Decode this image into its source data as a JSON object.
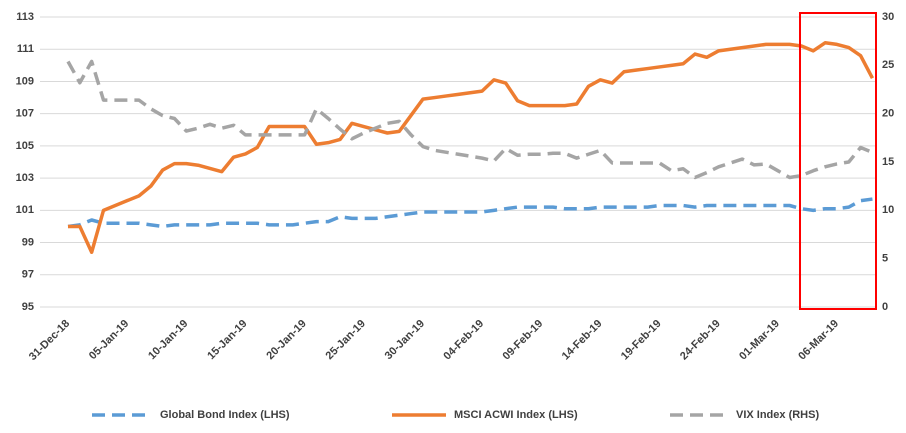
{
  "chart_data": {
    "type": "line",
    "categories": [
      "31-Dec-18",
      null,
      null,
      null,
      null,
      "05-Jan-19",
      null,
      null,
      null,
      null,
      "10-Jan-19",
      null,
      null,
      null,
      null,
      "15-Jan-19",
      null,
      null,
      null,
      null,
      "20-Jan-19",
      null,
      null,
      null,
      null,
      "25-Jan-19",
      null,
      null,
      null,
      null,
      "30-Jan-19",
      null,
      null,
      null,
      null,
      "04-Feb-19",
      null,
      null,
      null,
      null,
      "09-Feb-19",
      null,
      null,
      null,
      null,
      "14-Feb-19",
      null,
      null,
      null,
      null,
      "19-Feb-19",
      null,
      null,
      null,
      null,
      "24-Feb-19",
      null,
      null,
      null,
      null,
      "01-Mar-19",
      null,
      null,
      null,
      null,
      "06-Mar-19",
      null,
      null,
      null
    ],
    "series": [
      {
        "name": "Global Bond Index (LHS)",
        "color": "#5b9bd5",
        "dashed": true,
        "axis": "y",
        "values": [
          100,
          100.1,
          100.4,
          100.2,
          100.2,
          100.2,
          100.2,
          100.1,
          100,
          100.1,
          100.1,
          100.1,
          100.1,
          100.2,
          100.2,
          100.2,
          100.2,
          100.1,
          100.1,
          100.1,
          100.2,
          100.3,
          100.3,
          100.6,
          100.5,
          100.5,
          100.5,
          100.6,
          100.7,
          100.8,
          100.9,
          100.9,
          100.9,
          100.9,
          100.9,
          100.9,
          101,
          101.1,
          101.2,
          101.2,
          101.2,
          101.2,
          101.1,
          101.1,
          101.1,
          101.2,
          101.2,
          101.2,
          101.2,
          101.2,
          101.3,
          101.3,
          101.3,
          101.2,
          101.3,
          101.3,
          101.3,
          101.3,
          101.3,
          101.3,
          101.3,
          101.3,
          101.1,
          101,
          101.1,
          101.1,
          101.2,
          101.6,
          101.7
        ]
      },
      {
        "name": "MSCI ACWI Index (LHS)",
        "color": "#ed7d31",
        "dashed": false,
        "axis": "y",
        "values": [
          100,
          100,
          98.4,
          101,
          101.3,
          101.6,
          101.9,
          102.5,
          103.5,
          103.9,
          103.9,
          103.8,
          103.6,
          103.4,
          104.3,
          104.5,
          104.9,
          106.2,
          106.2,
          106.2,
          106.2,
          105.1,
          105.2,
          105.4,
          106.4,
          106.2,
          106,
          105.8,
          105.9,
          106.9,
          107.9,
          108,
          108.1,
          108.2,
          108.3,
          108.4,
          109.1,
          108.9,
          107.8,
          107.5,
          107.5,
          107.5,
          107.5,
          107.6,
          108.7,
          109.1,
          108.9,
          109.6,
          109.7,
          109.8,
          109.9,
          110,
          110.1,
          110.7,
          110.5,
          110.9,
          111,
          111.1,
          111.2,
          111.3,
          111.3,
          111.3,
          111.2,
          110.9,
          111.4,
          111.3,
          111.1,
          110.6,
          109.2
        ]
      },
      {
        "name": "VIX Index (RHS)",
        "color": "#a5a5a5",
        "dashed": true,
        "axis": "y2",
        "values": [
          25.4,
          23.2,
          25.4,
          21.4,
          21.4,
          21.4,
          21.4,
          20.5,
          19.8,
          19.5,
          18.2,
          18.5,
          18.9,
          18.5,
          18.8,
          17.8,
          17.8,
          17.8,
          17.8,
          17.8,
          17.8,
          20.5,
          19.5,
          18.4,
          17.4,
          18,
          18.5,
          19,
          19.2,
          17.8,
          16.6,
          16.2,
          16,
          15.8,
          15.6,
          15.4,
          15.1,
          16.4,
          15.7,
          15.8,
          15.8,
          15.9,
          15.9,
          15.4,
          15.8,
          16.2,
          14.9,
          14.9,
          14.9,
          14.9,
          14.9,
          14.1,
          14.3,
          13.4,
          13.9,
          14.5,
          14.9,
          15.3,
          14.7,
          14.8,
          14.1,
          13.4,
          13.6,
          14.1,
          14.5,
          14.8,
          15,
          16.5,
          16
        ]
      }
    ],
    "ylim": [
      95,
      113
    ],
    "yticks": [
      95,
      97,
      99,
      101,
      103,
      105,
      107,
      109,
      111,
      113
    ],
    "y2lim": [
      0,
      30
    ],
    "y2ticks": [
      0,
      5,
      10,
      15,
      20,
      25,
      30
    ],
    "grid": true,
    "legend": "bottom"
  }
}
